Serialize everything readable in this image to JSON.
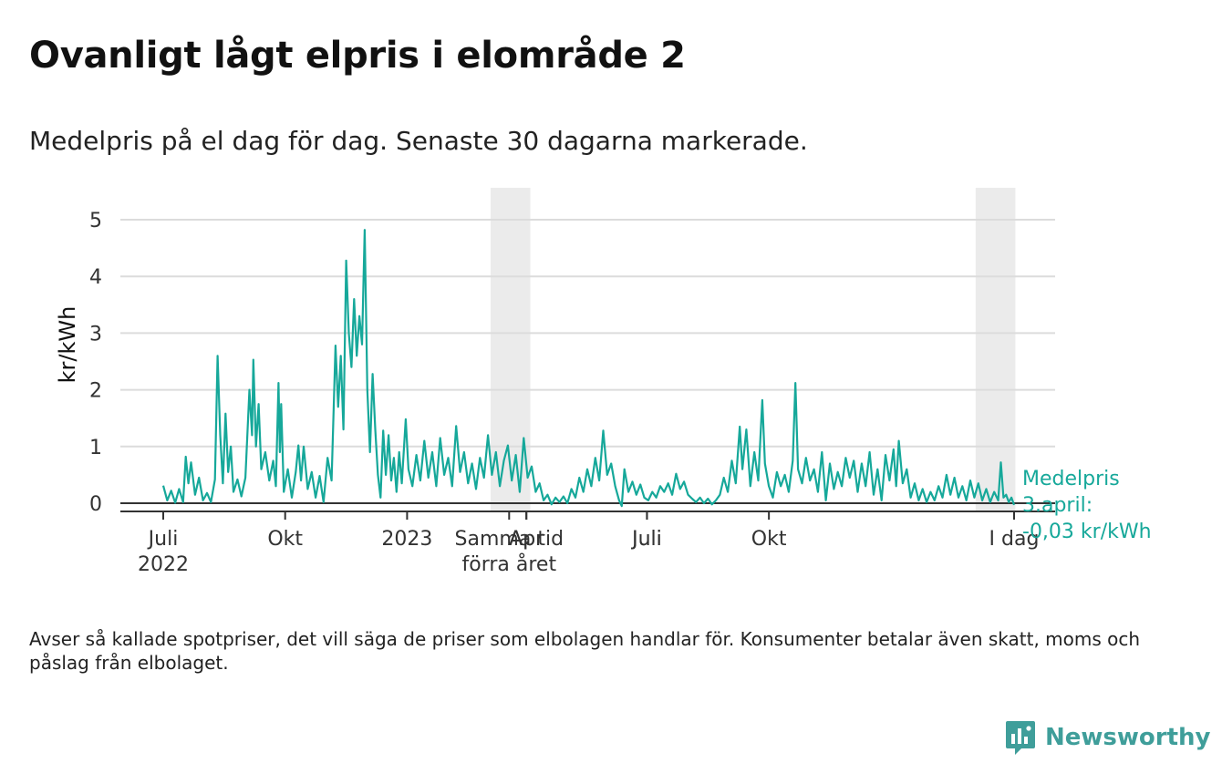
{
  "title": "Ovanligt lågt elpris i elområde 2",
  "subtitle": "Medelpris på el dag för dag.  Senaste 30 dagarna markerade.",
  "footnote": "Avser så kallade spotpriser, det vill säga de priser som elbolagen handlar för. Konsumenter betalar även skatt, moms och påslag från elbolaget.",
  "brand": {
    "name": "Newsworthy",
    "icon": "newsworthy-logo-icon",
    "color": "#3f9e9a"
  },
  "annotation": {
    "line1": "Medelpris",
    "line2": "3.april:",
    "line3": "-0,03 kr/kWh"
  },
  "chart_data": {
    "type": "line",
    "title": "Ovanligt lågt elpris i elområde 2",
    "xlabel": "",
    "ylabel": "kr/kWh",
    "ylim": [
      0,
      5.5
    ],
    "yticks": [
      "0",
      "1",
      "2",
      "3",
      "4",
      "5"
    ],
    "grid": "horizontal",
    "line_color": "#16a89a",
    "highlight_color": "#ebebeb",
    "x_range": [
      "2022-06-01",
      "2024-04-14"
    ],
    "xticks": [
      {
        "date": "2022-07-01",
        "line1": "Juli",
        "line2": "2022"
      },
      {
        "date": "2022-10-01",
        "line1": "Okt",
        "line2": ""
      },
      {
        "date": "2023-01-01",
        "line1": "2023",
        "line2": ""
      },
      {
        "date": "2023-04-01",
        "line1": "Apr",
        "line2": ""
      },
      {
        "date": "2023-07-01",
        "line1": "Juli",
        "line2": ""
      },
      {
        "date": "2023-10-01",
        "line1": "Okt",
        "line2": ""
      },
      {
        "date": "2024-04-03",
        "line1": "I dag",
        "line2": ""
      }
    ],
    "period_labels": [
      {
        "date": "2023-03-19",
        "line1": "Samma tid",
        "line2": "förra året"
      },
      {
        "date": "2023-04-01",
        "line1": "Apr",
        "line2": ""
      },
      {
        "date": "2023-07-01",
        "line1": "Juli",
        "line2": ""
      }
    ],
    "highlights": [
      {
        "start": "2023-03-05",
        "end": "2023-04-04",
        "label": "Samma tid förra året"
      },
      {
        "start": "2024-03-05",
        "end": "2024-04-04",
        "label": "Senaste 30 dagarna"
      }
    ],
    "series": [
      {
        "name": "Medelpris",
        "points": [
          [
            "2022-07-01",
            0.31
          ],
          [
            "2022-07-04",
            0.05
          ],
          [
            "2022-07-07",
            0.22
          ],
          [
            "2022-07-10",
            0.01
          ],
          [
            "2022-07-13",
            0.25
          ],
          [
            "2022-07-16",
            0.02
          ],
          [
            "2022-07-18",
            0.82
          ],
          [
            "2022-07-20",
            0.35
          ],
          [
            "2022-07-22",
            0.72
          ],
          [
            "2022-07-25",
            0.15
          ],
          [
            "2022-07-28",
            0.45
          ],
          [
            "2022-07-31",
            0.05
          ],
          [
            "2022-08-03",
            0.18
          ],
          [
            "2022-08-06",
            0.02
          ],
          [
            "2022-08-09",
            0.42
          ],
          [
            "2022-08-11",
            2.6
          ],
          [
            "2022-08-13",
            1.2
          ],
          [
            "2022-08-15",
            0.35
          ],
          [
            "2022-08-17",
            1.58
          ],
          [
            "2022-08-19",
            0.55
          ],
          [
            "2022-08-21",
            1.0
          ],
          [
            "2022-08-23",
            0.2
          ],
          [
            "2022-08-26",
            0.42
          ],
          [
            "2022-08-29",
            0.12
          ],
          [
            "2022-09-01",
            0.45
          ],
          [
            "2022-09-04",
            2.0
          ],
          [
            "2022-09-06",
            1.2
          ],
          [
            "2022-09-07",
            2.53
          ],
          [
            "2022-09-09",
            1.0
          ],
          [
            "2022-09-11",
            1.75
          ],
          [
            "2022-09-13",
            0.6
          ],
          [
            "2022-09-16",
            0.9
          ],
          [
            "2022-09-19",
            0.4
          ],
          [
            "2022-09-22",
            0.75
          ],
          [
            "2022-09-24",
            0.3
          ],
          [
            "2022-09-26",
            2.12
          ],
          [
            "2022-09-27",
            0.9
          ],
          [
            "2022-09-28",
            1.75
          ],
          [
            "2022-09-30",
            0.2
          ],
          [
            "2022-10-03",
            0.6
          ],
          [
            "2022-10-06",
            0.1
          ],
          [
            "2022-10-09",
            0.55
          ],
          [
            "2022-10-11",
            1.02
          ],
          [
            "2022-10-13",
            0.4
          ],
          [
            "2022-10-15",
            1.0
          ],
          [
            "2022-10-18",
            0.25
          ],
          [
            "2022-10-21",
            0.55
          ],
          [
            "2022-10-24",
            0.1
          ],
          [
            "2022-10-27",
            0.48
          ],
          [
            "2022-10-30",
            0.02
          ],
          [
            "2022-11-02",
            0.8
          ],
          [
            "2022-11-05",
            0.4
          ],
          [
            "2022-11-08",
            2.78
          ],
          [
            "2022-11-10",
            1.7
          ],
          [
            "2022-11-12",
            2.6
          ],
          [
            "2022-11-14",
            1.3
          ],
          [
            "2022-11-16",
            4.28
          ],
          [
            "2022-11-18",
            3.0
          ],
          [
            "2022-11-20",
            2.4
          ],
          [
            "2022-11-22",
            3.6
          ],
          [
            "2022-11-24",
            2.6
          ],
          [
            "2022-11-26",
            3.3
          ],
          [
            "2022-11-28",
            2.8
          ],
          [
            "2022-11-30",
            4.82
          ],
          [
            "2022-12-02",
            2.0
          ],
          [
            "2022-12-04",
            0.9
          ],
          [
            "2022-12-06",
            2.28
          ],
          [
            "2022-12-08",
            1.3
          ],
          [
            "2022-12-10",
            0.5
          ],
          [
            "2022-12-12",
            0.1
          ],
          [
            "2022-12-14",
            1.28
          ],
          [
            "2022-12-16",
            0.5
          ],
          [
            "2022-12-18",
            1.2
          ],
          [
            "2022-12-20",
            0.4
          ],
          [
            "2022-12-22",
            0.8
          ],
          [
            "2022-12-24",
            0.2
          ],
          [
            "2022-12-26",
            0.9
          ],
          [
            "2022-12-28",
            0.35
          ],
          [
            "2022-12-31",
            1.48
          ],
          [
            "2023-01-02",
            0.6
          ],
          [
            "2023-01-05",
            0.3
          ],
          [
            "2023-01-08",
            0.85
          ],
          [
            "2023-01-11",
            0.4
          ],
          [
            "2023-01-14",
            1.1
          ],
          [
            "2023-01-17",
            0.45
          ],
          [
            "2023-01-20",
            0.9
          ],
          [
            "2023-01-23",
            0.3
          ],
          [
            "2023-01-26",
            1.15
          ],
          [
            "2023-01-29",
            0.5
          ],
          [
            "2023-02-01",
            0.8
          ],
          [
            "2023-02-04",
            0.3
          ],
          [
            "2023-02-07",
            1.36
          ],
          [
            "2023-02-10",
            0.55
          ],
          [
            "2023-02-13",
            0.9
          ],
          [
            "2023-02-16",
            0.35
          ],
          [
            "2023-02-19",
            0.7
          ],
          [
            "2023-02-22",
            0.25
          ],
          [
            "2023-02-25",
            0.8
          ],
          [
            "2023-02-28",
            0.45
          ],
          [
            "2023-03-03",
            1.2
          ],
          [
            "2023-03-06",
            0.5
          ],
          [
            "2023-03-09",
            0.9
          ],
          [
            "2023-03-12",
            0.3
          ],
          [
            "2023-03-15",
            0.75
          ],
          [
            "2023-03-18",
            1.02
          ],
          [
            "2023-03-21",
            0.4
          ],
          [
            "2023-03-24",
            0.85
          ],
          [
            "2023-03-27",
            0.2
          ],
          [
            "2023-03-30",
            1.15
          ],
          [
            "2023-04-02",
            0.45
          ],
          [
            "2023-04-05",
            0.65
          ],
          [
            "2023-04-08",
            0.2
          ],
          [
            "2023-04-11",
            0.35
          ],
          [
            "2023-04-14",
            0.05
          ],
          [
            "2023-04-17",
            0.15
          ],
          [
            "2023-04-20",
            -0.02
          ],
          [
            "2023-04-23",
            0.1
          ],
          [
            "2023-04-26",
            0.02
          ],
          [
            "2023-04-29",
            0.12
          ],
          [
            "2023-05-02",
            0.0
          ],
          [
            "2023-05-05",
            0.25
          ],
          [
            "2023-05-08",
            0.1
          ],
          [
            "2023-05-11",
            0.45
          ],
          [
            "2023-05-14",
            0.2
          ],
          [
            "2023-05-17",
            0.6
          ],
          [
            "2023-05-20",
            0.3
          ],
          [
            "2023-05-23",
            0.8
          ],
          [
            "2023-05-26",
            0.4
          ],
          [
            "2023-05-29",
            1.28
          ],
          [
            "2023-06-01",
            0.5
          ],
          [
            "2023-06-04",
            0.7
          ],
          [
            "2023-06-07",
            0.3
          ],
          [
            "2023-06-10",
            0.05
          ],
          [
            "2023-06-12",
            -0.05
          ],
          [
            "2023-06-14",
            0.6
          ],
          [
            "2023-06-17",
            0.2
          ],
          [
            "2023-06-20",
            0.38
          ],
          [
            "2023-06-23",
            0.15
          ],
          [
            "2023-06-26",
            0.33
          ],
          [
            "2023-06-29",
            0.1
          ],
          [
            "2023-07-02",
            0.05
          ],
          [
            "2023-07-05",
            0.2
          ],
          [
            "2023-07-08",
            0.1
          ],
          [
            "2023-07-11",
            0.3
          ],
          [
            "2023-07-14",
            0.2
          ],
          [
            "2023-07-17",
            0.35
          ],
          [
            "2023-07-20",
            0.15
          ],
          [
            "2023-07-23",
            0.52
          ],
          [
            "2023-07-26",
            0.25
          ],
          [
            "2023-07-29",
            0.38
          ],
          [
            "2023-08-01",
            0.15
          ],
          [
            "2023-08-04",
            0.08
          ],
          [
            "2023-08-07",
            0.02
          ],
          [
            "2023-08-10",
            0.1
          ],
          [
            "2023-08-13",
            0.0
          ],
          [
            "2023-08-16",
            0.08
          ],
          [
            "2023-08-19",
            -0.02
          ],
          [
            "2023-08-22",
            0.05
          ],
          [
            "2023-08-25",
            0.15
          ],
          [
            "2023-08-28",
            0.45
          ],
          [
            "2023-08-31",
            0.2
          ],
          [
            "2023-09-03",
            0.75
          ],
          [
            "2023-09-06",
            0.35
          ],
          [
            "2023-09-09",
            1.35
          ],
          [
            "2023-09-11",
            0.6
          ],
          [
            "2023-09-14",
            1.3
          ],
          [
            "2023-09-17",
            0.3
          ],
          [
            "2023-09-20",
            0.9
          ],
          [
            "2023-09-23",
            0.4
          ],
          [
            "2023-09-26",
            1.82
          ],
          [
            "2023-09-28",
            0.7
          ],
          [
            "2023-10-01",
            0.3
          ],
          [
            "2023-10-04",
            0.1
          ],
          [
            "2023-10-07",
            0.55
          ],
          [
            "2023-10-10",
            0.3
          ],
          [
            "2023-10-13",
            0.5
          ],
          [
            "2023-10-16",
            0.2
          ],
          [
            "2023-10-19",
            0.75
          ],
          [
            "2023-10-21",
            2.12
          ],
          [
            "2023-10-23",
            0.6
          ],
          [
            "2023-10-26",
            0.35
          ],
          [
            "2023-10-29",
            0.8
          ],
          [
            "2023-11-01",
            0.4
          ],
          [
            "2023-11-04",
            0.6
          ],
          [
            "2023-11-07",
            0.2
          ],
          [
            "2023-11-10",
            0.9
          ],
          [
            "2023-11-13",
            0.05
          ],
          [
            "2023-11-16",
            0.7
          ],
          [
            "2023-11-19",
            0.25
          ],
          [
            "2023-11-22",
            0.55
          ],
          [
            "2023-11-25",
            0.3
          ],
          [
            "2023-11-28",
            0.8
          ],
          [
            "2023-12-01",
            0.45
          ],
          [
            "2023-12-04",
            0.75
          ],
          [
            "2023-12-07",
            0.2
          ],
          [
            "2023-12-10",
            0.7
          ],
          [
            "2023-12-13",
            0.3
          ],
          [
            "2023-12-16",
            0.9
          ],
          [
            "2023-12-19",
            0.15
          ],
          [
            "2023-12-22",
            0.6
          ],
          [
            "2023-12-25",
            0.05
          ],
          [
            "2023-12-28",
            0.85
          ],
          [
            "2023-12-31",
            0.4
          ],
          [
            "2024-01-03",
            0.95
          ],
          [
            "2024-01-05",
            0.3
          ],
          [
            "2024-01-07",
            1.1
          ],
          [
            "2024-01-10",
            0.35
          ],
          [
            "2024-01-13",
            0.6
          ],
          [
            "2024-01-16",
            0.1
          ],
          [
            "2024-01-19",
            0.35
          ],
          [
            "2024-01-22",
            0.05
          ],
          [
            "2024-01-25",
            0.25
          ],
          [
            "2024-01-28",
            0.02
          ],
          [
            "2024-01-31",
            0.2
          ],
          [
            "2024-02-03",
            0.05
          ],
          [
            "2024-02-06",
            0.3
          ],
          [
            "2024-02-09",
            0.1
          ],
          [
            "2024-02-12",
            0.5
          ],
          [
            "2024-02-15",
            0.15
          ],
          [
            "2024-02-18",
            0.45
          ],
          [
            "2024-02-21",
            0.1
          ],
          [
            "2024-02-24",
            0.3
          ],
          [
            "2024-02-27",
            0.05
          ],
          [
            "2024-03-01",
            0.4
          ],
          [
            "2024-03-04",
            0.1
          ],
          [
            "2024-03-07",
            0.35
          ],
          [
            "2024-03-10",
            0.05
          ],
          [
            "2024-03-13",
            0.25
          ],
          [
            "2024-03-16",
            0.02
          ],
          [
            "2024-03-19",
            0.2
          ],
          [
            "2024-03-22",
            0.05
          ],
          [
            "2024-03-24",
            0.72
          ],
          [
            "2024-03-26",
            0.1
          ],
          [
            "2024-03-28",
            0.15
          ],
          [
            "2024-03-30",
            0.02
          ],
          [
            "2024-04-01",
            0.1
          ],
          [
            "2024-04-03",
            -0.03
          ]
        ]
      }
    ]
  }
}
